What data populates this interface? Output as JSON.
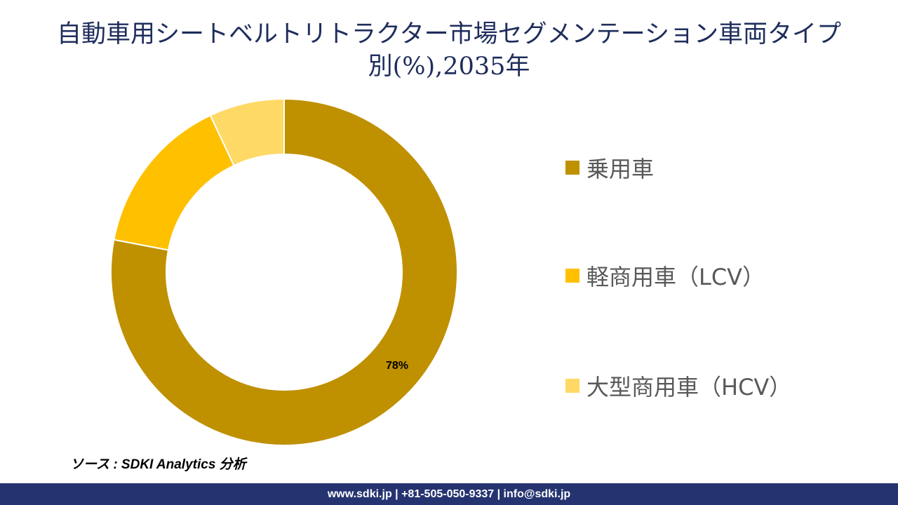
{
  "title_line1": "自動車用シートベルトリトラクター市場セグメンテーション車両タイプ",
  "title_line2": "別(%),2035年",
  "chart_data": {
    "type": "donut",
    "categories": [
      "乗用車",
      "軽商用車（LCV）",
      "大型商用車（HCV）"
    ],
    "values": [
      78,
      15,
      7
    ],
    "unit": "%",
    "colors": [
      "#BF9000",
      "#FFC000",
      "#FFD966"
    ],
    "data_labels": [
      "78%",
      "",
      ""
    ],
    "legend_position": "right"
  },
  "source": "ソース : SDKI Analytics 分析",
  "footer": "www.sdki.jp | +81-505-050-9337 | info@sdki.jp"
}
